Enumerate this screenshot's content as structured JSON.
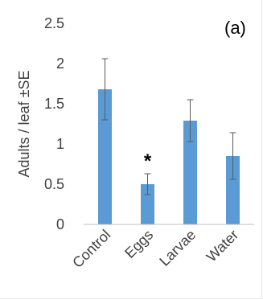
{
  "chart_data": {
    "type": "bar",
    "panel_label": "(a)",
    "ylabel": "Adults / leaf ±SE",
    "categories": [
      "Control",
      "Eggs",
      "Larvae",
      "Water"
    ],
    "values": [
      1.68,
      0.5,
      1.29,
      0.85
    ],
    "errors": [
      0.38,
      0.13,
      0.26,
      0.29
    ],
    "annotations": [
      "",
      "*",
      "",
      ""
    ],
    "ylim": [
      0,
      2.5
    ],
    "yticks": [
      "0",
      "0.5",
      "1",
      "1.5",
      "2",
      "2.5"
    ],
    "grid": false,
    "bar_color": "#5b9bd5",
    "error_color": "#595959"
  }
}
